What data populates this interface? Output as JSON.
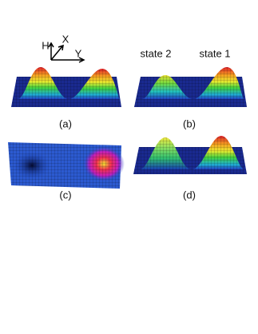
{
  "axes": {
    "h": "H",
    "x": "X",
    "y": "Y"
  },
  "states": [
    "state 2",
    "state 1"
  ],
  "panels": [
    {
      "label": "(a)"
    },
    {
      "label": "(b)"
    },
    {
      "label": "(c)"
    },
    {
      "label": "(d)"
    }
  ]
}
